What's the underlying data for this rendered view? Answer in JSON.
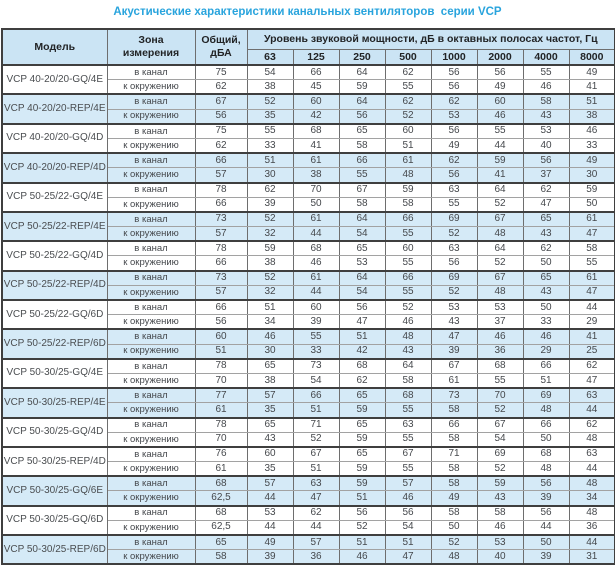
{
  "title": "Акустические характеристики канальных вентиляторов  серии VCP",
  "colors": {
    "title_blue": "#29a4dd",
    "header_bg": "#cbe4f4",
    "stripe_bg": "#d5eaf7",
    "border_dark": "#3f3f3f",
    "border_mid": "#6e6e6e",
    "border_light": "#a2a2a2",
    "header_text": "#222426",
    "body_text": "#45484c"
  },
  "table": {
    "headers": {
      "model": "Модель",
      "zone": "Зона\nизмерения",
      "total": "Общий,\nдБА",
      "spl_group": "Уровень звуковой мощности, дБ в октавных полосах частот, Гц",
      "frequencies": [
        "63",
        "125",
        "250",
        "500",
        "1000",
        "2000",
        "4000",
        "8000"
      ]
    },
    "groups": [
      {
        "model": "VCP 40-20/20-GQ/4E",
        "shaded": false,
        "rows": [
          {
            "zone": "в канал",
            "total": "75",
            "values": [
              54,
              66,
              64,
              62,
              56,
              56,
              55,
              49
            ]
          },
          {
            "zone": "к окружению",
            "total": "62",
            "values": [
              38,
              45,
              59,
              55,
              56,
              49,
              46,
              41
            ]
          }
        ]
      },
      {
        "model": "VCP 40-20/20-REP/4E",
        "shaded": true,
        "rows": [
          {
            "zone": "в канал",
            "total": "67",
            "values": [
              52,
              60,
              64,
              62,
              62,
              60,
              58,
              51
            ]
          },
          {
            "zone": "к окружению",
            "total": "56",
            "values": [
              35,
              42,
              56,
              52,
              53,
              46,
              43,
              38
            ]
          }
        ]
      },
      {
        "model": "VCP 40-20/20-GQ/4D",
        "shaded": false,
        "rows": [
          {
            "zone": "в канал",
            "total": "75",
            "values": [
              55,
              68,
              65,
              60,
              56,
              55,
              53,
              46
            ]
          },
          {
            "zone": "к окружению",
            "total": "62",
            "values": [
              33,
              41,
              58,
              51,
              49,
              44,
              40,
              33
            ]
          }
        ]
      },
      {
        "model": "VCP 40-20/20-REP/4D",
        "shaded": true,
        "rows": [
          {
            "zone": "в канал",
            "total": "66",
            "values": [
              51,
              61,
              66,
              61,
              62,
              59,
              56,
              49
            ]
          },
          {
            "zone": "к окружению",
            "total": "57",
            "values": [
              30,
              38,
              55,
              48,
              56,
              41,
              37,
              30
            ]
          }
        ]
      },
      {
        "model": "VCP 50-25/22-GQ/4E",
        "shaded": false,
        "rows": [
          {
            "zone": "в канал",
            "total": "78",
            "values": [
              62,
              70,
              67,
              59,
              63,
              64,
              62,
              59
            ]
          },
          {
            "zone": "к окружению",
            "total": "66",
            "values": [
              39,
              50,
              58,
              58,
              55,
              52,
              47,
              50
            ]
          }
        ]
      },
      {
        "model": "VCP 50-25/22-REP/4E",
        "shaded": true,
        "rows": [
          {
            "zone": "в канал",
            "total": "73",
            "values": [
              52,
              61,
              64,
              66,
              69,
              67,
              65,
              61
            ]
          },
          {
            "zone": "к окружению",
            "total": "57",
            "values": [
              32,
              44,
              54,
              55,
              52,
              48,
              43,
              47
            ]
          }
        ]
      },
      {
        "model": "VCP 50-25/22-GQ/4D",
        "shaded": false,
        "rows": [
          {
            "zone": "в канал",
            "total": "78",
            "values": [
              59,
              68,
              65,
              60,
              63,
              64,
              62,
              58
            ]
          },
          {
            "zone": "к окружению",
            "total": "66",
            "values": [
              38,
              46,
              53,
              55,
              56,
              52,
              50,
              55
            ]
          }
        ]
      },
      {
        "model": "VCP 50-25/22-REP/4D",
        "shaded": true,
        "rows": [
          {
            "zone": "в канал",
            "total": "73",
            "values": [
              52,
              61,
              64,
              66,
              69,
              67,
              65,
              61
            ]
          },
          {
            "zone": "к окружению",
            "total": "57",
            "values": [
              32,
              44,
              54,
              55,
              52,
              48,
              43,
              47
            ]
          }
        ]
      },
      {
        "model": "VCP 50-25/22-GQ/6D",
        "shaded": false,
        "rows": [
          {
            "zone": "в канал",
            "total": "66",
            "values": [
              51,
              60,
              56,
              52,
              53,
              53,
              50,
              44
            ]
          },
          {
            "zone": "к окружению",
            "total": "56",
            "values": [
              34,
              39,
              47,
              46,
              43,
              37,
              33,
              29
            ]
          }
        ]
      },
      {
        "model": "VCP 50-25/22-REP/6D",
        "shaded": true,
        "rows": [
          {
            "zone": "в канал",
            "total": "60",
            "values": [
              46,
              55,
              51,
              48,
              47,
              46,
              46,
              41
            ]
          },
          {
            "zone": "к окружению",
            "total": "51",
            "values": [
              30,
              33,
              42,
              43,
              39,
              36,
              29,
              25
            ]
          }
        ]
      },
      {
        "model": "VCP 50-30/25-GQ/4E",
        "shaded": false,
        "rows": [
          {
            "zone": "в канал",
            "total": "78",
            "values": [
              65,
              73,
              68,
              64,
              67,
              68,
              66,
              62
            ]
          },
          {
            "zone": "к окружению",
            "total": "70",
            "values": [
              38,
              54,
              62,
              58,
              61,
              55,
              51,
              47
            ]
          }
        ]
      },
      {
        "model": "VCP 50-30/25-REP/4E",
        "shaded": true,
        "rows": [
          {
            "zone": "в канал",
            "total": "77",
            "values": [
              57,
              66,
              65,
              68,
              73,
              70,
              69,
              63
            ]
          },
          {
            "zone": "к окружению",
            "total": "61",
            "values": [
              35,
              51,
              59,
              55,
              58,
              52,
              48,
              44
            ]
          }
        ]
      },
      {
        "model": "VCP 50-30/25-GQ/4D",
        "shaded": false,
        "rows": [
          {
            "zone": "в канал",
            "total": "78",
            "values": [
              65,
              71,
              65,
              63,
              66,
              67,
              66,
              62
            ]
          },
          {
            "zone": "к окружению",
            "total": "70",
            "values": [
              43,
              52,
              59,
              55,
              58,
              54,
              50,
              48
            ]
          }
        ]
      },
      {
        "model": "VCP 50-30/25-REP/4D",
        "shaded": false,
        "rows": [
          {
            "zone": "в канал",
            "total": "76",
            "values": [
              60,
              67,
              65,
              67,
              71,
              69,
              68,
              63
            ]
          },
          {
            "zone": "к окружению",
            "total": "61",
            "values": [
              35,
              51,
              59,
              55,
              58,
              52,
              48,
              44
            ]
          }
        ]
      },
      {
        "model": "VCP 50-30/25-GQ/6E",
        "shaded": true,
        "rows": [
          {
            "zone": "в канал",
            "total": "68",
            "values": [
              57,
              63,
              59,
              57,
              58,
              59,
              56,
              48
            ]
          },
          {
            "zone": "к окружению",
            "total": "62,5",
            "values": [
              44,
              47,
              51,
              46,
              49,
              43,
              39,
              34
            ]
          }
        ]
      },
      {
        "model": "VCP 50-30/25-GQ/6D",
        "shaded": false,
        "rows": [
          {
            "zone": "в канал",
            "total": "68",
            "values": [
              53,
              62,
              56,
              56,
              58,
              58,
              56,
              48
            ]
          },
          {
            "zone": "к окружению",
            "total": "62,5",
            "values": [
              44,
              44,
              52,
              54,
              50,
              46,
              44,
              36
            ]
          }
        ]
      },
      {
        "model": "VCP 50-30/25-REP/6D",
        "shaded": true,
        "rows": [
          {
            "zone": "в канал",
            "total": "65",
            "values": [
              49,
              57,
              51,
              51,
              52,
              53,
              50,
              44
            ]
          },
          {
            "zone": "к окружению",
            "total": "58",
            "values": [
              39,
              36,
              46,
              47,
              48,
              40,
              39,
              31
            ]
          }
        ]
      }
    ]
  }
}
